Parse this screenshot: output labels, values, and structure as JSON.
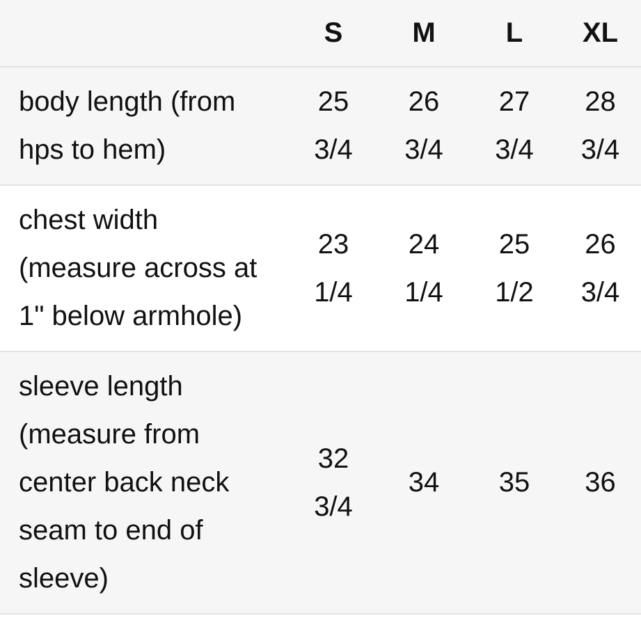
{
  "size_chart": {
    "columns": [
      "S",
      "M",
      "L",
      "XL"
    ],
    "rows": [
      {
        "label": "body length (from\nhps to hem)",
        "values": [
          "25\n3/4",
          "26\n3/4",
          "27\n3/4",
          "28\n3/4"
        ]
      },
      {
        "label": "chest width\n(measure across at\n1\" below armhole)",
        "values": [
          "23\n1/4",
          "24\n1/4",
          "25\n1/2",
          "26\n3/4"
        ]
      },
      {
        "label": "sleeve length\n(measure from\ncenter back neck\nseam to end of\nsleeve)",
        "values": [
          "32\n3/4",
          "34",
          "35",
          "36"
        ]
      }
    ],
    "colors": {
      "background": "#ffffff",
      "stripe": "#f6f6f6",
      "border": "#e2e2e2",
      "text": "#111111"
    }
  }
}
